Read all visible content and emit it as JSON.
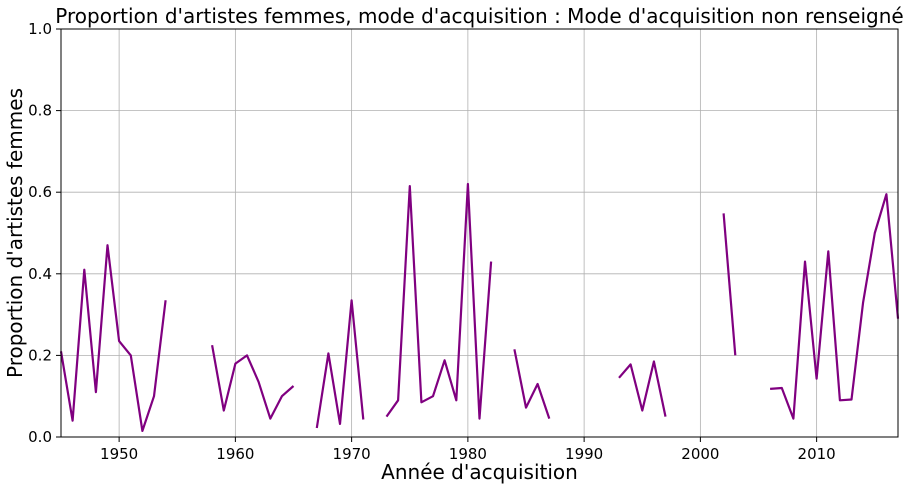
{
  "chart_data": {
    "type": "line",
    "title": "Proportion d'artistes femmes, mode d'acquisition : Mode d'acquisition non renseigné",
    "xlabel": "Année d'acquisition",
    "ylabel": "Proportion d'artistes femmes",
    "xlim": [
      1945,
      2017
    ],
    "ylim": [
      0,
      1
    ],
    "xticks": [
      1950,
      1960,
      1970,
      1980,
      1990,
      2000,
      2010
    ],
    "yticks": [
      0.0,
      0.2,
      0.4,
      0.6,
      0.8,
      1.0
    ],
    "xtick_labels": [
      "1950",
      "1960",
      "1970",
      "1980",
      "1990",
      "2000",
      "2010"
    ],
    "ytick_labels": [
      "0.0",
      "0.2",
      "0.4",
      "0.6",
      "0.8",
      "1.0"
    ],
    "grid": true,
    "series_color": "#800080",
    "segments": [
      [
        [
          1945,
          0.21
        ],
        [
          1946,
          0.04
        ],
        [
          1947,
          0.41
        ],
        [
          1948,
          0.11
        ],
        [
          1949,
          0.47
        ],
        [
          1950,
          0.235
        ],
        [
          1951,
          0.2
        ],
        [
          1952,
          0.015
        ],
        [
          1953,
          0.1
        ],
        [
          1954,
          0.335
        ]
      ],
      [
        [
          1958,
          0.225
        ],
        [
          1959,
          0.065
        ],
        [
          1960,
          0.18
        ],
        [
          1961,
          0.2
        ],
        [
          1962,
          0.135
        ],
        [
          1963,
          0.045
        ],
        [
          1964,
          0.1
        ],
        [
          1965,
          0.125
        ]
      ],
      [
        [
          1967,
          0.022
        ],
        [
          1968,
          0.205
        ],
        [
          1969,
          0.032
        ],
        [
          1970,
          0.335
        ],
        [
          1971,
          0.043
        ]
      ],
      [
        [
          1973,
          0.05
        ],
        [
          1974,
          0.09
        ],
        [
          1975,
          0.615
        ],
        [
          1976,
          0.085
        ],
        [
          1977,
          0.1
        ],
        [
          1978,
          0.188
        ],
        [
          1979,
          0.09
        ],
        [
          1980,
          0.62
        ],
        [
          1981,
          0.045
        ],
        [
          1982,
          0.43
        ]
      ],
      [
        [
          1984,
          0.215
        ],
        [
          1985,
          0.072
        ],
        [
          1986,
          0.13
        ],
        [
          1987,
          0.045
        ]
      ],
      [
        [
          1993,
          0.145
        ],
        [
          1994,
          0.178
        ],
        [
          1995,
          0.065
        ],
        [
          1996,
          0.185
        ],
        [
          1997,
          0.05
        ]
      ],
      [
        [
          2002,
          0.548
        ],
        [
          2003,
          0.2
        ]
      ],
      [
        [
          2006,
          0.118
        ],
        [
          2007,
          0.12
        ],
        [
          2008,
          0.045
        ],
        [
          2009,
          0.43
        ],
        [
          2010,
          0.143
        ],
        [
          2011,
          0.455
        ],
        [
          2012,
          0.09
        ],
        [
          2013,
          0.092
        ],
        [
          2014,
          0.33
        ],
        [
          2015,
          0.5
        ],
        [
          2016,
          0.595
        ],
        [
          2017,
          0.29
        ]
      ]
    ]
  }
}
